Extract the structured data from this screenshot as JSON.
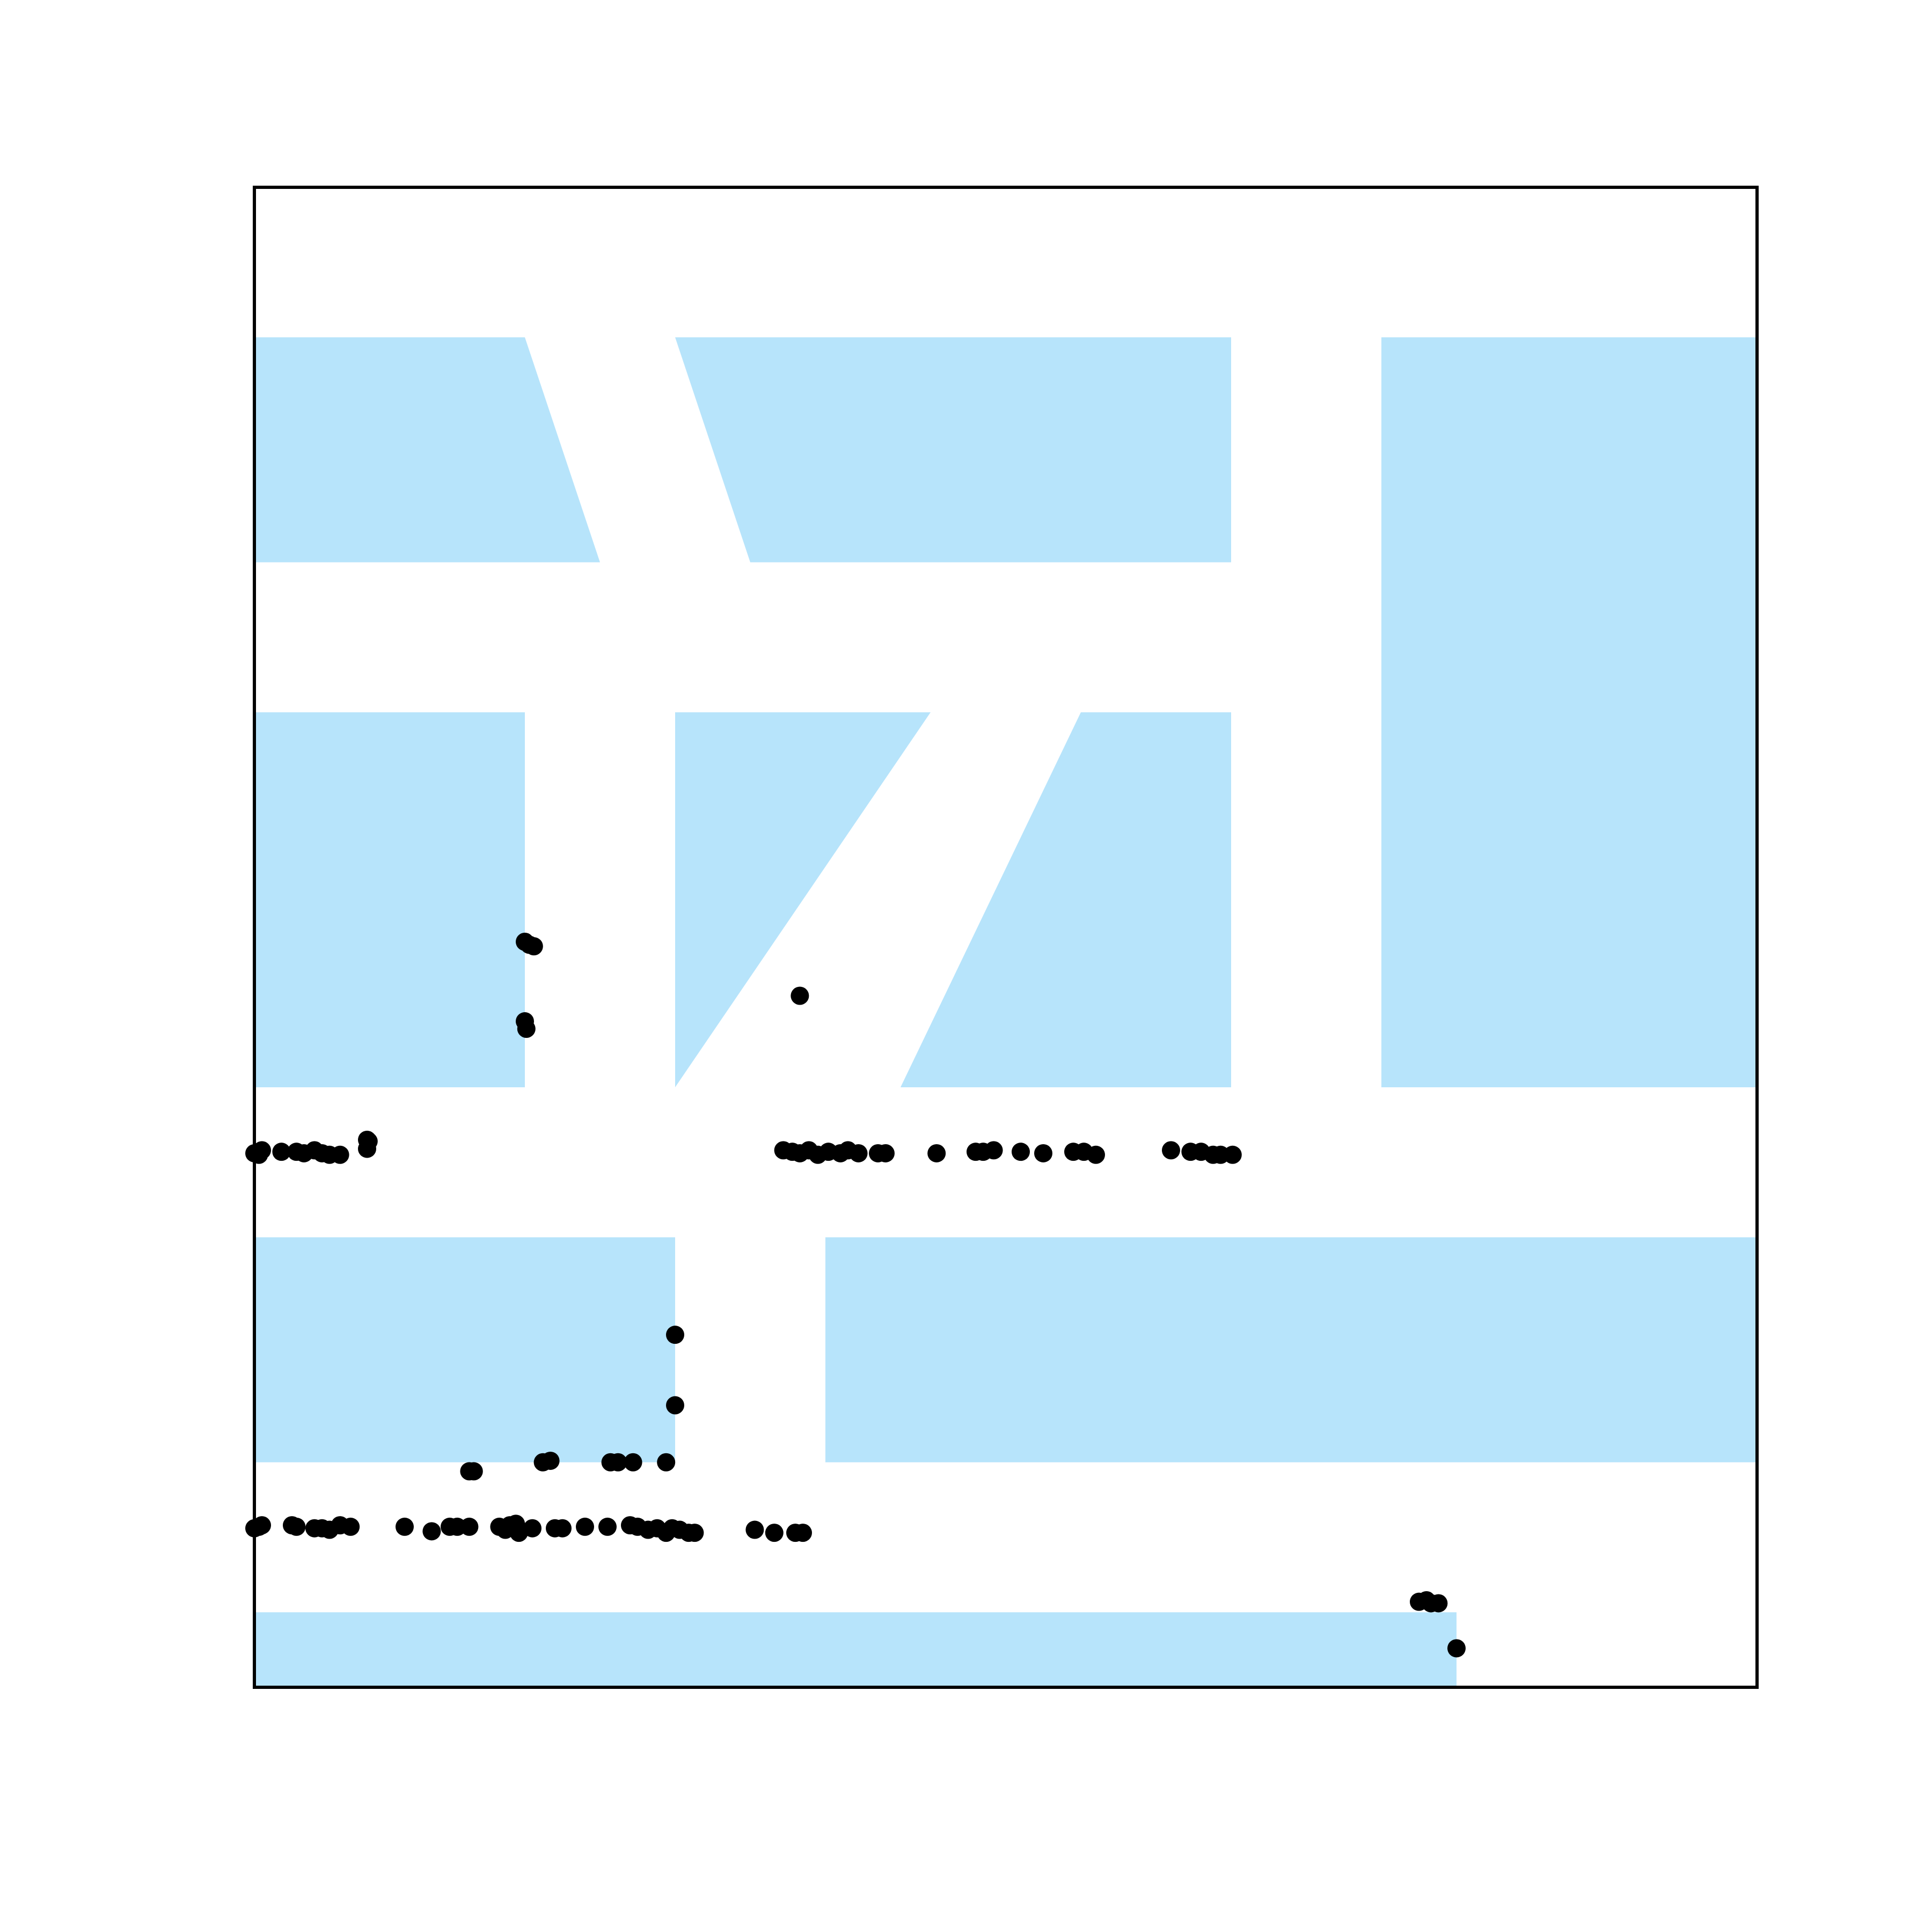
{
  "colors": {
    "background": "#ffffff",
    "block_fill": "#b7e4fb",
    "frame_stroke": "#000000",
    "point_fill": "#000000"
  },
  "map_data": {
    "x_range": [
      0,
      100
    ],
    "y_range": [
      0,
      100
    ],
    "blocks": [
      [
        [
          0,
          90
        ],
        [
          18,
          90
        ],
        [
          23,
          75
        ],
        [
          0,
          75
        ]
      ],
      [
        [
          28,
          90
        ],
        [
          65,
          90
        ],
        [
          65,
          75
        ],
        [
          33,
          75
        ]
      ],
      [
        [
          75,
          90
        ],
        [
          100,
          90
        ],
        [
          100,
          40
        ],
        [
          75,
          40
        ]
      ],
      [
        [
          0,
          65
        ],
        [
          18,
          65
        ],
        [
          18,
          40
        ],
        [
          0,
          40
        ]
      ],
      [
        [
          28,
          65
        ],
        [
          45,
          65
        ],
        [
          28,
          40
        ]
      ],
      [
        [
          55,
          65
        ],
        [
          65,
          65
        ],
        [
          65,
          40
        ],
        [
          43,
          40
        ]
      ],
      [
        [
          0,
          30
        ],
        [
          28,
          30
        ],
        [
          28,
          15
        ],
        [
          0,
          15
        ]
      ],
      [
        [
          38,
          30
        ],
        [
          100,
          30
        ],
        [
          100,
          15
        ],
        [
          38,
          15
        ]
      ],
      [
        [
          0,
          5
        ],
        [
          80,
          5
        ],
        [
          80,
          0
        ],
        [
          0,
          0
        ]
      ]
    ],
    "points": [
      [
        0,
        35.6
      ],
      [
        0.3,
        35.7
      ],
      [
        0.5,
        35.8
      ],
      [
        0.3,
        35.5
      ],
      [
        1.8,
        35.7
      ],
      [
        2.8,
        35.7
      ],
      [
        3.3,
        35.6
      ],
      [
        4,
        35.8
      ],
      [
        4.5,
        35.6
      ],
      [
        5,
        35.5
      ],
      [
        5.7,
        35.5
      ],
      [
        7.5,
        36.5
      ],
      [
        7.6,
        36.4
      ],
      [
        7.5,
        35.9
      ],
      [
        18,
        49.7
      ],
      [
        18.3,
        49.5
      ],
      [
        18.6,
        49.4
      ],
      [
        18,
        44.4
      ],
      [
        18.1,
        43.9
      ],
      [
        36.3,
        46.1
      ],
      [
        35.2,
        35.8
      ],
      [
        35.8,
        35.7
      ],
      [
        36.3,
        35.6
      ],
      [
        36.9,
        35.8
      ],
      [
        37.5,
        35.5
      ],
      [
        38.2,
        35.7
      ],
      [
        39,
        35.6
      ],
      [
        39.5,
        35.8
      ],
      [
        40.2,
        35.6
      ],
      [
        41.5,
        35.6
      ],
      [
        42,
        35.6
      ],
      [
        45.4,
        35.6
      ],
      [
        48,
        35.7
      ],
      [
        48.5,
        35.7
      ],
      [
        49.2,
        35.8
      ],
      [
        51,
        35.7
      ],
      [
        52.5,
        35.6
      ],
      [
        54.5,
        35.7
      ],
      [
        55.2,
        35.7
      ],
      [
        56,
        35.5
      ],
      [
        61,
        35.8
      ],
      [
        62.3,
        35.7
      ],
      [
        63,
        35.7
      ],
      [
        63.8,
        35.5
      ],
      [
        64.3,
        35.5
      ],
      [
        65.1,
        35.5
      ],
      [
        28,
        23.5
      ],
      [
        28,
        18.8
      ],
      [
        27.4,
        15
      ],
      [
        24.2,
        15
      ],
      [
        23.7,
        15
      ],
      [
        25.2,
        15
      ],
      [
        19.2,
        15
      ],
      [
        19.7,
        15.1
      ],
      [
        14.3,
        14.4
      ],
      [
        14.6,
        14.4
      ],
      [
        0,
        10.6
      ],
      [
        0.3,
        10.7
      ],
      [
        0.5,
        10.8
      ],
      [
        2.5,
        10.8
      ],
      [
        2.8,
        10.7
      ],
      [
        4,
        10.6
      ],
      [
        4.5,
        10.6
      ],
      [
        5,
        10.5
      ],
      [
        5.7,
        10.8
      ],
      [
        6.4,
        10.7
      ],
      [
        10,
        10.7
      ],
      [
        11.8,
        10.4
      ],
      [
        13,
        10.7
      ],
      [
        13.5,
        10.7
      ],
      [
        14.3,
        10.7
      ],
      [
        16.3,
        10.7
      ],
      [
        16.7,
        10.5
      ],
      [
        17,
        10.8
      ],
      [
        17.4,
        10.9
      ],
      [
        17.6,
        10.3
      ],
      [
        18.5,
        10.6
      ],
      [
        20,
        10.6
      ],
      [
        20.5,
        10.6
      ],
      [
        22,
        10.7
      ],
      [
        23.5,
        10.7
      ],
      [
        25,
        10.8
      ],
      [
        25.5,
        10.7
      ],
      [
        26.2,
        10.5
      ],
      [
        26.8,
        10.6
      ],
      [
        27.4,
        10.3
      ],
      [
        27.8,
        10.6
      ],
      [
        28.3,
        10.5
      ],
      [
        28.9,
        10.3
      ],
      [
        29.3,
        10.3
      ],
      [
        33.3,
        10.5
      ],
      [
        34.6,
        10.3
      ],
      [
        36,
        10.3
      ],
      [
        36.5,
        10.3
      ],
      [
        77.5,
        5.7
      ],
      [
        78,
        5.8
      ],
      [
        78.3,
        5.6
      ],
      [
        78.8,
        5.6
      ],
      [
        80,
        2.6
      ]
    ]
  }
}
